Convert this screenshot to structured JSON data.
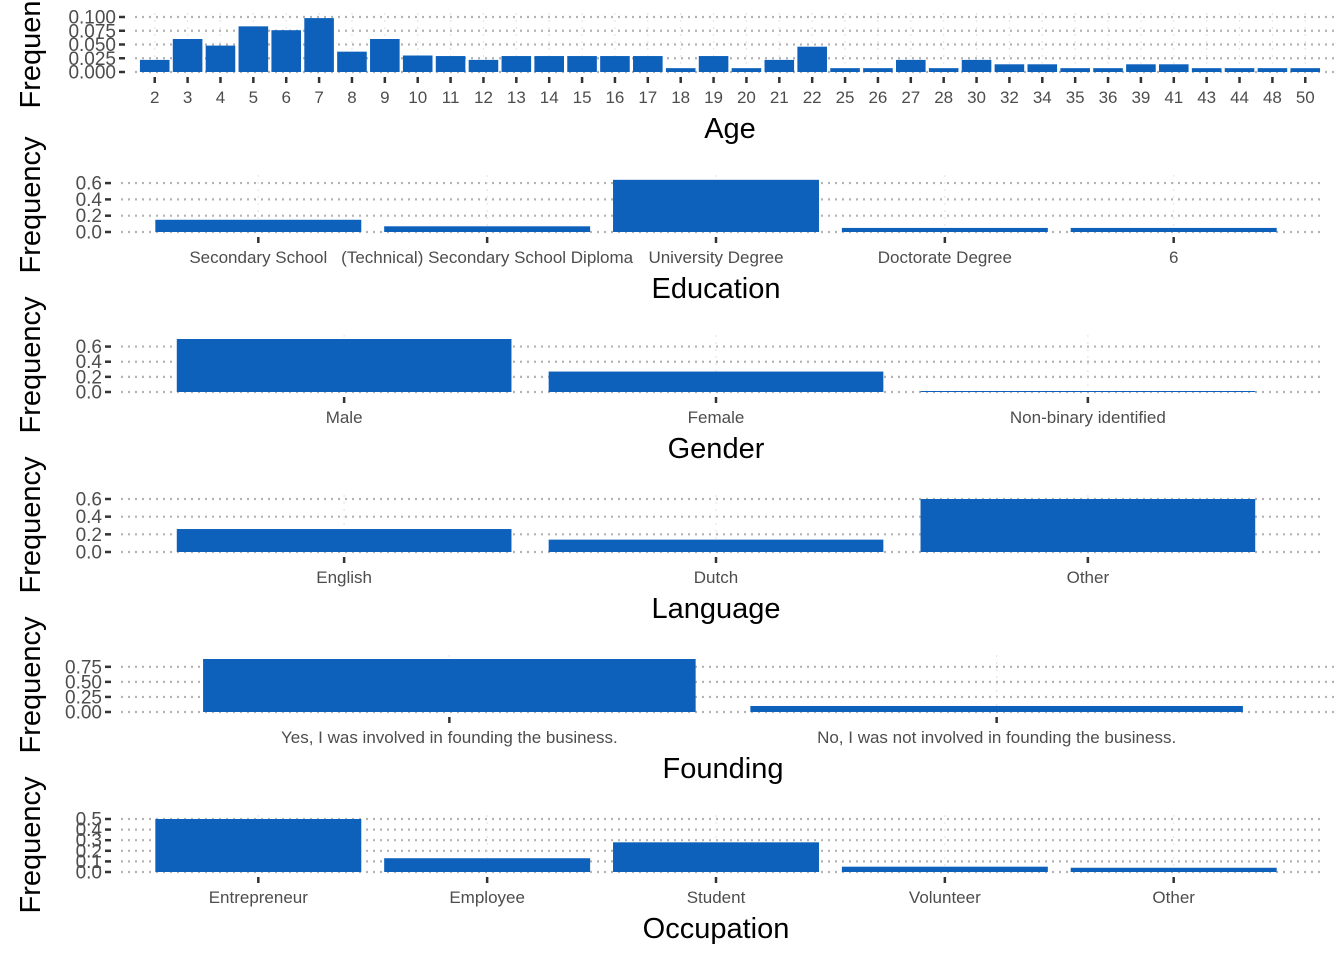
{
  "colors": {
    "bar": "#0D61BB",
    "grid": "#B3B3B3",
    "tick": "#333333"
  },
  "chart_data": [
    {
      "type": "bar",
      "xlabel": "Age",
      "ylabel": "Frequency",
      "ylim": [
        0,
        0.1
      ],
      "yticks": [
        "0.000",
        "0.025",
        "0.050",
        "0.075",
        "0.100"
      ],
      "categories": [
        "2",
        "3",
        "4",
        "5",
        "6",
        "7",
        "8",
        "9",
        "10",
        "11",
        "12",
        "13",
        "14",
        "15",
        "16",
        "17",
        "18",
        "19",
        "20",
        "21",
        "22",
        "25",
        "26",
        "27",
        "28",
        "30",
        "32",
        "34",
        "35",
        "36",
        "39",
        "41",
        "43",
        "44",
        "48",
        "50"
      ],
      "values": [
        0.022,
        0.06,
        0.048,
        0.083,
        0.076,
        0.098,
        0.037,
        0.06,
        0.03,
        0.029,
        0.022,
        0.029,
        0.029,
        0.029,
        0.029,
        0.029,
        0.007,
        0.029,
        0.007,
        0.022,
        0.046,
        0.007,
        0.007,
        0.022,
        0.007,
        0.022,
        0.014,
        0.014,
        0.007,
        0.007,
        0.014,
        0.014,
        0.007,
        0.007,
        0.007,
        0.007
      ]
    },
    {
      "type": "bar",
      "xlabel": "Education",
      "ylabel": "Frequency",
      "ylim": [
        0,
        0.65
      ],
      "yticks": [
        "0.0",
        "0.2",
        "0.4",
        "0.6"
      ],
      "categories": [
        "Secondary School",
        "(Technical) Secondary School Diploma",
        "University Degree",
        "Doctorate Degree",
        "6"
      ],
      "values": [
        0.15,
        0.07,
        0.64,
        0.05,
        0.05
      ]
    },
    {
      "type": "bar",
      "xlabel": "Gender",
      "ylabel": "Frequency",
      "ylim": [
        0,
        0.7
      ],
      "yticks": [
        "0.0",
        "0.2",
        "0.4",
        "0.6"
      ],
      "categories": [
        "Male",
        "Female",
        "Non-binary identified"
      ],
      "values": [
        0.7,
        0.27,
        0.01
      ]
    },
    {
      "type": "bar",
      "xlabel": "Language",
      "ylabel": "Frequency",
      "ylim": [
        0,
        0.6
      ],
      "yticks": [
        "0.0",
        "0.2",
        "0.4",
        "0.6"
      ],
      "categories": [
        "English",
        "Dutch",
        "Other"
      ],
      "values": [
        0.26,
        0.14,
        0.6
      ]
    },
    {
      "type": "bar",
      "xlabel": "Founding",
      "ylabel": "Frequency",
      "ylim": [
        0,
        0.88
      ],
      "yticks": [
        "0.00",
        "0.25",
        "0.50",
        "0.75"
      ],
      "categories": [
        "Yes, I was involved in founding the business.",
        "No, I was not involved in founding the business."
      ],
      "values": [
        0.88,
        0.1
      ]
    },
    {
      "type": "bar",
      "xlabel": "Occupation",
      "ylabel": "Frequency",
      "ylim": [
        0,
        0.5
      ],
      "yticks": [
        "0.0",
        "0.1",
        "0.2",
        "0.3",
        "0.4",
        "0.5"
      ],
      "categories": [
        "Entrepreneur",
        "Employee",
        "Student",
        "Volunteer",
        "Other"
      ],
      "values": [
        0.5,
        0.13,
        0.28,
        0.05,
        0.04
      ]
    }
  ]
}
